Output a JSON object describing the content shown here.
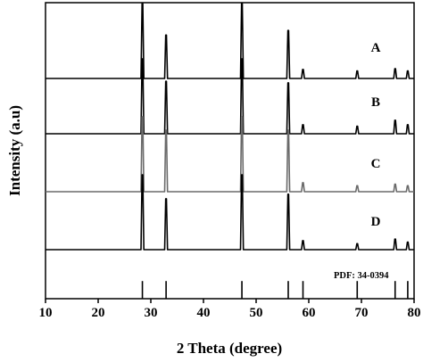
{
  "chart_data": {
    "type": "line",
    "xlabel": "2 Theta (degree)",
    "ylabel": "Intensity  (a.u)",
    "xlim": [
      10,
      80
    ],
    "x_ticks": [
      "10",
      "20",
      "30",
      "40",
      "50",
      "60",
      "70",
      "80"
    ],
    "y_ticks_shown": false,
    "grid": false,
    "series": [
      {
        "name": "A",
        "color": "#000000",
        "baseline": 0.0,
        "peaks": [
          {
            "x": 28.4,
            "h": 1.0
          },
          {
            "x": 32.9,
            "h": 0.58
          },
          {
            "x": 47.3,
            "h": 1.0
          },
          {
            "x": 56.1,
            "h": 0.64
          },
          {
            "x": 58.9,
            "h": 0.12
          },
          {
            "x": 69.2,
            "h": 0.1
          },
          {
            "x": 76.4,
            "h": 0.13
          },
          {
            "x": 78.8,
            "h": 0.1
          }
        ]
      },
      {
        "name": "B",
        "color": "#000000",
        "baseline": 0.0,
        "peaks": [
          {
            "x": 28.4,
            "h": 1.0
          },
          {
            "x": 32.9,
            "h": 0.7
          },
          {
            "x": 47.3,
            "h": 1.0
          },
          {
            "x": 56.1,
            "h": 0.68
          },
          {
            "x": 58.9,
            "h": 0.12
          },
          {
            "x": 69.2,
            "h": 0.1
          },
          {
            "x": 76.4,
            "h": 0.18
          },
          {
            "x": 78.8,
            "h": 0.12
          }
        ]
      },
      {
        "name": "C",
        "color": "#6a6a6a",
        "baseline": 0.0,
        "peaks": [
          {
            "x": 28.4,
            "h": 1.0
          },
          {
            "x": 32.9,
            "h": 0.82
          },
          {
            "x": 47.3,
            "h": 1.0
          },
          {
            "x": 56.1,
            "h": 0.82
          },
          {
            "x": 58.9,
            "h": 0.12
          },
          {
            "x": 69.2,
            "h": 0.08
          },
          {
            "x": 76.4,
            "h": 0.1
          },
          {
            "x": 78.8,
            "h": 0.08
          }
        ]
      },
      {
        "name": "D",
        "color": "#000000",
        "baseline": 0.0,
        "peaks": [
          {
            "x": 28.4,
            "h": 1.0
          },
          {
            "x": 32.9,
            "h": 0.68
          },
          {
            "x": 47.3,
            "h": 1.0
          },
          {
            "x": 56.1,
            "h": 0.74
          },
          {
            "x": 58.9,
            "h": 0.12
          },
          {
            "x": 69.2,
            "h": 0.08
          },
          {
            "x": 76.4,
            "h": 0.14
          },
          {
            "x": 78.8,
            "h": 0.1
          }
        ]
      }
    ],
    "reference": {
      "label": "PDF: 34-0394",
      "lines": [
        {
          "x": 28.4,
          "h": 0.55
        },
        {
          "x": 32.9,
          "h": 0.55
        },
        {
          "x": 47.3,
          "h": 0.55
        },
        {
          "x": 56.1,
          "h": 0.55
        },
        {
          "x": 58.9,
          "h": 0.55
        },
        {
          "x": 69.2,
          "h": 0.55
        },
        {
          "x": 76.4,
          "h": 0.55
        },
        {
          "x": 78.8,
          "h": 0.55
        }
      ]
    }
  }
}
